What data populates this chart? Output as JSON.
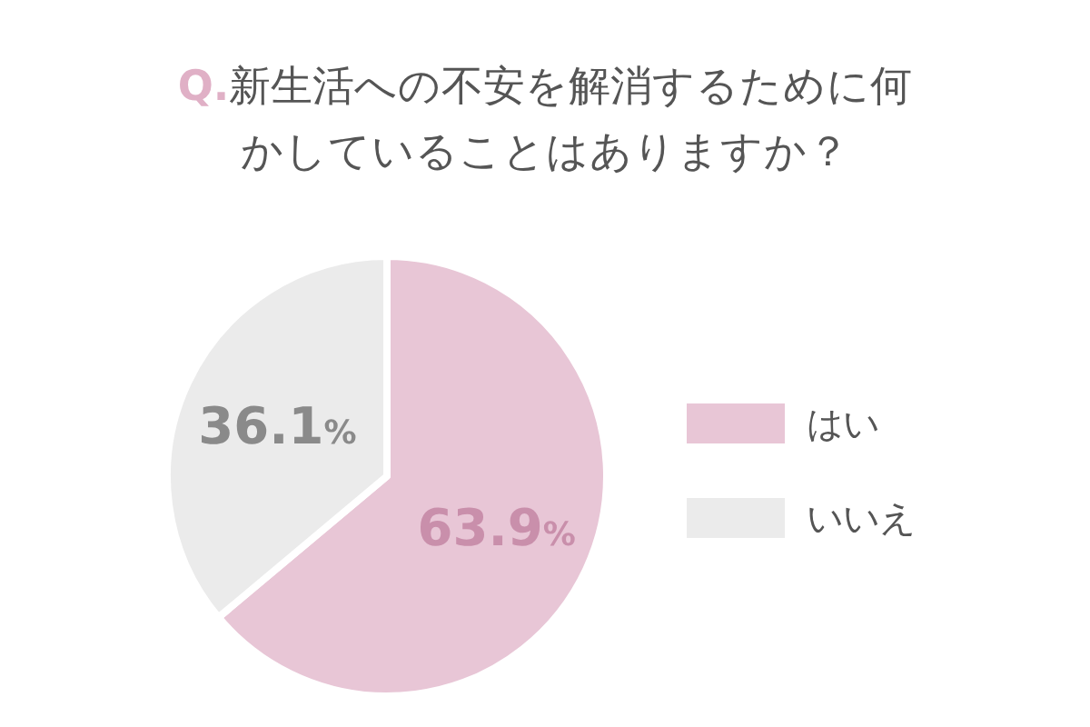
{
  "chart_data": {
    "type": "pie",
    "title": "Q.新生活への不安を解消するために何かしていることはありますか？",
    "categories": [
      "はい",
      "いいえ"
    ],
    "values": [
      63.9,
      36.1
    ],
    "colors": [
      "#e8c6d6",
      "#ebebeb"
    ],
    "value_labels": [
      "63.9%",
      "36.1%"
    ],
    "legend": "right"
  }
}
